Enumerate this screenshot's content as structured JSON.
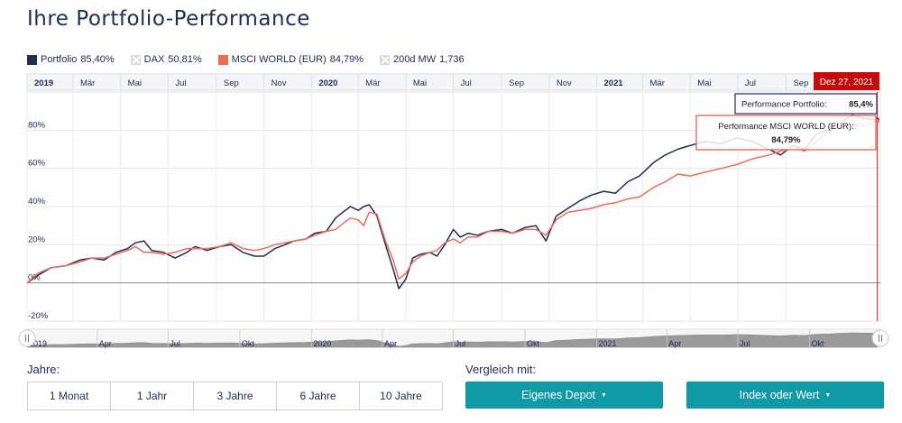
{
  "title": "Ihre Portfolio-Performance",
  "legend": [
    {
      "label": "Portfolio",
      "value": "85,40%",
      "color": "#1f2d55",
      "active": true
    },
    {
      "label": "DAX",
      "value": "50,81%",
      "color": "#d8d8d8",
      "active": false
    },
    {
      "label": "MSCI WORLD (EUR)",
      "value": "84,79%",
      "color": "#ef6b57",
      "active": true
    },
    {
      "label": "200d MW",
      "value": "1,736",
      "color": "#d8d8d8",
      "active": false
    }
  ],
  "controls": {
    "jahre_label": "Jahre:",
    "vergleich_label": "Vergleich mit:",
    "ranges": [
      "1 Monat",
      "1 Jahr",
      "3 Jahre",
      "6 Jahre",
      "10 Jahre"
    ],
    "eigenes_depot": "Eigenes Depot",
    "index_oder_wert": "Index oder Wert",
    "accent": "#0f9aa6"
  },
  "chart_data": {
    "type": "line",
    "x_range": [
      "2019-01-01",
      "2021-12-31"
    ],
    "ylim": [
      -20,
      100
    ],
    "grid": true,
    "y_ticks": [
      "-20%",
      "0%",
      "20%",
      "40%",
      "60%",
      "80%"
    ],
    "top_ticks": [
      {
        "date": "2019-01-01",
        "label": "2019",
        "major": true
      },
      {
        "date": "2019-03-01",
        "label": "Mär"
      },
      {
        "date": "2019-05-01",
        "label": "Mai"
      },
      {
        "date": "2019-07-01",
        "label": "Jul"
      },
      {
        "date": "2019-09-01",
        "label": "Sep"
      },
      {
        "date": "2019-11-01",
        "label": "Nov"
      },
      {
        "date": "2020-01-01",
        "label": "2020",
        "major": true
      },
      {
        "date": "2020-03-01",
        "label": "Mär"
      },
      {
        "date": "2020-05-01",
        "label": "Mai"
      },
      {
        "date": "2020-07-01",
        "label": "Jul"
      },
      {
        "date": "2020-09-01",
        "label": "Sep"
      },
      {
        "date": "2020-11-01",
        "label": "Nov"
      },
      {
        "date": "2021-01-01",
        "label": "2021",
        "major": true
      },
      {
        "date": "2021-03-01",
        "label": "Mär"
      },
      {
        "date": "2021-05-01",
        "label": "Mai"
      },
      {
        "date": "2021-07-01",
        "label": "Jul"
      },
      {
        "date": "2021-09-01",
        "label": "Sep"
      }
    ],
    "navigator_ticks": [
      {
        "date": "2019-01-01",
        "label": "2019"
      },
      {
        "date": "2019-04-01",
        "label": "Apr"
      },
      {
        "date": "2019-07-01",
        "label": "Jul"
      },
      {
        "date": "2019-10-01",
        "label": "Okt"
      },
      {
        "date": "2020-01-01",
        "label": "2020"
      },
      {
        "date": "2020-04-01",
        "label": "Apr"
      },
      {
        "date": "2020-07-01",
        "label": "Jul"
      },
      {
        "date": "2020-10-01",
        "label": "Okt"
      },
      {
        "date": "2021-01-01",
        "label": "2021"
      },
      {
        "date": "2021-04-01",
        "label": "Apr"
      },
      {
        "date": "2021-07-01",
        "label": "Jul"
      },
      {
        "date": "2021-10-01",
        "label": "Okt"
      }
    ],
    "series": [
      {
        "name": "Portfolio",
        "color": "#1f2d55",
        "points": [
          [
            "2019-01-01",
            0
          ],
          [
            "2019-01-15",
            4
          ],
          [
            "2019-02-01",
            8
          ],
          [
            "2019-02-20",
            9
          ],
          [
            "2019-03-10",
            12
          ],
          [
            "2019-03-25",
            13
          ],
          [
            "2019-04-10",
            12
          ],
          [
            "2019-04-25",
            16
          ],
          [
            "2019-05-10",
            18
          ],
          [
            "2019-05-20",
            21
          ],
          [
            "2019-05-31",
            22
          ],
          [
            "2019-06-10",
            17
          ],
          [
            "2019-06-25",
            16
          ],
          [
            "2019-07-10",
            13
          ],
          [
            "2019-07-25",
            16
          ],
          [
            "2019-08-05",
            19
          ],
          [
            "2019-08-20",
            17
          ],
          [
            "2019-09-05",
            19
          ],
          [
            "2019-09-20",
            20
          ],
          [
            "2019-10-05",
            16
          ],
          [
            "2019-10-20",
            14
          ],
          [
            "2019-11-01",
            14
          ],
          [
            "2019-11-15",
            18
          ],
          [
            "2019-11-28",
            20
          ],
          [
            "2019-12-10",
            22
          ],
          [
            "2019-12-25",
            23
          ],
          [
            "2020-01-05",
            26
          ],
          [
            "2020-01-20",
            27
          ],
          [
            "2020-02-01",
            34
          ],
          [
            "2020-02-10",
            37
          ],
          [
            "2020-02-20",
            40
          ],
          [
            "2020-03-01",
            38
          ],
          [
            "2020-03-08",
            40
          ],
          [
            "2020-03-15",
            41
          ],
          [
            "2020-03-25",
            35
          ],
          [
            "2020-04-05",
            20
          ],
          [
            "2020-04-15",
            7
          ],
          [
            "2020-04-22",
            -3
          ],
          [
            "2020-05-01",
            2
          ],
          [
            "2020-05-10",
            13
          ],
          [
            "2020-05-20",
            15
          ],
          [
            "2020-06-01",
            16
          ],
          [
            "2020-06-10",
            14
          ],
          [
            "2020-06-20",
            20
          ],
          [
            "2020-07-01",
            28
          ],
          [
            "2020-07-10",
            24
          ],
          [
            "2020-07-20",
            26
          ],
          [
            "2020-08-01",
            25
          ],
          [
            "2020-08-15",
            27
          ],
          [
            "2020-09-01",
            28
          ],
          [
            "2020-09-15",
            26
          ],
          [
            "2020-10-01",
            29
          ],
          [
            "2020-10-15",
            30
          ],
          [
            "2020-10-28",
            22
          ],
          [
            "2020-11-10",
            35
          ],
          [
            "2020-11-25",
            39
          ],
          [
            "2020-12-10",
            43
          ],
          [
            "2020-12-25",
            46
          ],
          [
            "2021-01-10",
            48
          ],
          [
            "2021-01-25",
            47
          ],
          [
            "2021-02-10",
            53
          ],
          [
            "2021-02-25",
            56
          ],
          [
            "2021-03-15",
            63
          ],
          [
            "2021-03-30",
            67
          ],
          [
            "2021-04-15",
            70
          ],
          [
            "2021-05-01",
            72
          ],
          [
            "2021-05-20",
            74
          ],
          [
            "2021-06-10",
            73
          ],
          [
            "2021-06-30",
            76
          ],
          [
            "2021-07-20",
            74
          ],
          [
            "2021-08-10",
            70
          ],
          [
            "2021-08-25",
            67
          ],
          [
            "2021-09-10",
            72
          ],
          [
            "2021-09-25",
            70
          ],
          [
            "2021-10-10",
            78
          ],
          [
            "2021-10-25",
            80
          ],
          [
            "2021-11-10",
            84
          ],
          [
            "2021-11-25",
            88
          ],
          [
            "2021-12-10",
            86
          ],
          [
            "2021-12-27",
            85.4
          ]
        ]
      },
      {
        "name": "MSCI WORLD (EUR)",
        "color": "#ef6b57",
        "points": [
          [
            "2019-01-01",
            0
          ],
          [
            "2019-01-15",
            5
          ],
          [
            "2019-02-01",
            8
          ],
          [
            "2019-02-20",
            9
          ],
          [
            "2019-03-10",
            11
          ],
          [
            "2019-03-25",
            13
          ],
          [
            "2019-04-10",
            13
          ],
          [
            "2019-04-25",
            15
          ],
          [
            "2019-05-10",
            17
          ],
          [
            "2019-05-20",
            19
          ],
          [
            "2019-05-31",
            16
          ],
          [
            "2019-06-10",
            16
          ],
          [
            "2019-06-25",
            15
          ],
          [
            "2019-07-10",
            16
          ],
          [
            "2019-07-25",
            18
          ],
          [
            "2019-08-05",
            18
          ],
          [
            "2019-08-20",
            18
          ],
          [
            "2019-09-05",
            19
          ],
          [
            "2019-09-20",
            21
          ],
          [
            "2019-10-05",
            18
          ],
          [
            "2019-10-20",
            17
          ],
          [
            "2019-11-01",
            18
          ],
          [
            "2019-11-15",
            20
          ],
          [
            "2019-11-28",
            21
          ],
          [
            "2019-12-10",
            22
          ],
          [
            "2019-12-25",
            23
          ],
          [
            "2020-01-05",
            25
          ],
          [
            "2020-01-20",
            27
          ],
          [
            "2020-02-01",
            28
          ],
          [
            "2020-02-10",
            31
          ],
          [
            "2020-02-20",
            34
          ],
          [
            "2020-03-01",
            33
          ],
          [
            "2020-03-08",
            30
          ],
          [
            "2020-03-15",
            37
          ],
          [
            "2020-03-25",
            36
          ],
          [
            "2020-04-05",
            22
          ],
          [
            "2020-04-15",
            12
          ],
          [
            "2020-04-22",
            2
          ],
          [
            "2020-05-01",
            5
          ],
          [
            "2020-05-10",
            11
          ],
          [
            "2020-05-20",
            14
          ],
          [
            "2020-06-01",
            16
          ],
          [
            "2020-06-10",
            17
          ],
          [
            "2020-06-20",
            21
          ],
          [
            "2020-07-01",
            23
          ],
          [
            "2020-07-10",
            21
          ],
          [
            "2020-07-20",
            24
          ],
          [
            "2020-08-01",
            24
          ],
          [
            "2020-08-15",
            27
          ],
          [
            "2020-09-01",
            27
          ],
          [
            "2020-09-15",
            26
          ],
          [
            "2020-10-01",
            28
          ],
          [
            "2020-10-15",
            28
          ],
          [
            "2020-10-28",
            25
          ],
          [
            "2020-11-10",
            33
          ],
          [
            "2020-11-25",
            37
          ],
          [
            "2020-12-10",
            38
          ],
          [
            "2020-12-25",
            39
          ],
          [
            "2021-01-10",
            41
          ],
          [
            "2021-01-25",
            42
          ],
          [
            "2021-02-10",
            44
          ],
          [
            "2021-02-25",
            45
          ],
          [
            "2021-03-15",
            50
          ],
          [
            "2021-03-30",
            53
          ],
          [
            "2021-04-15",
            57
          ],
          [
            "2021-05-01",
            56
          ],
          [
            "2021-05-20",
            58
          ],
          [
            "2021-06-10",
            60
          ],
          [
            "2021-06-30",
            62
          ],
          [
            "2021-07-20",
            65
          ],
          [
            "2021-08-10",
            67
          ],
          [
            "2021-08-25",
            69
          ],
          [
            "2021-09-10",
            71
          ],
          [
            "2021-09-25",
            69
          ],
          [
            "2021-10-10",
            74
          ],
          [
            "2021-10-25",
            79
          ],
          [
            "2021-11-10",
            82
          ],
          [
            "2021-11-25",
            83
          ],
          [
            "2021-12-10",
            82
          ],
          [
            "2021-12-27",
            84.79
          ]
        ]
      }
    ],
    "tooltip": {
      "date": "Dez 27, 2021",
      "portfolio_label": "Performance Portfolio:",
      "portfolio_value": "85,4%",
      "msci_label": "Performance MSCI WORLD (EUR):",
      "msci_value": "84,79%"
    }
  }
}
